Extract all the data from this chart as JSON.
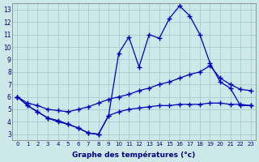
{
  "xlabel": "Graphe des températures (°c)",
  "bg_color": "#cce8e8",
  "grid_color": "#aacccc",
  "line_color": "#0000bb",
  "curve1_x": [
    0,
    1,
    2,
    3,
    4,
    5,
    6,
    7,
    8,
    9,
    10,
    11,
    12,
    13,
    14,
    15,
    16,
    17,
    18,
    19,
    20,
    21,
    22,
    23
  ],
  "curve1_y": [
    6.0,
    5.3,
    4.8,
    4.3,
    4.1,
    3.8,
    3.5,
    3.1,
    3.0,
    4.5,
    9.5,
    10.8,
    8.4,
    11.0,
    10.7,
    12.3,
    13.3,
    12.5,
    11.0,
    8.7,
    7.2,
    6.7,
    5.3,
    5.3
  ],
  "curve2_x": [
    0,
    1,
    2,
    3,
    4,
    5,
    6,
    7,
    8,
    9,
    10,
    11,
    12,
    13,
    14,
    15,
    16,
    17,
    18,
    19,
    20,
    21,
    22,
    23
  ],
  "curve2_y": [
    6.0,
    5.5,
    5.3,
    5.0,
    4.9,
    4.8,
    5.0,
    5.2,
    5.5,
    5.8,
    6.0,
    6.2,
    6.5,
    6.7,
    7.0,
    7.2,
    7.5,
    7.8,
    8.0,
    8.5,
    7.5,
    7.0,
    6.6,
    6.5
  ],
  "curve3_x": [
    0,
    1,
    2,
    3,
    4,
    5,
    6,
    7,
    8,
    9,
    10,
    11,
    12,
    13,
    14,
    15,
    16,
    17,
    18,
    19,
    20,
    21,
    22,
    23
  ],
  "curve3_y": [
    6.0,
    5.3,
    4.8,
    4.3,
    4.0,
    3.8,
    3.5,
    3.1,
    3.0,
    4.5,
    4.8,
    5.0,
    5.1,
    5.2,
    5.3,
    5.3,
    5.4,
    5.4,
    5.4,
    5.5,
    5.5,
    5.4,
    5.4,
    5.3
  ],
  "ylim": [
    2.5,
    13.5
  ],
  "yticks": [
    3,
    4,
    5,
    6,
    7,
    8,
    9,
    10,
    11,
    12,
    13
  ],
  "xticks": [
    0,
    1,
    2,
    3,
    4,
    5,
    6,
    7,
    8,
    9,
    10,
    11,
    12,
    13,
    14,
    15,
    16,
    17,
    18,
    19,
    20,
    21,
    22,
    23
  ],
  "xlim": [
    -0.5,
    23.5
  ]
}
